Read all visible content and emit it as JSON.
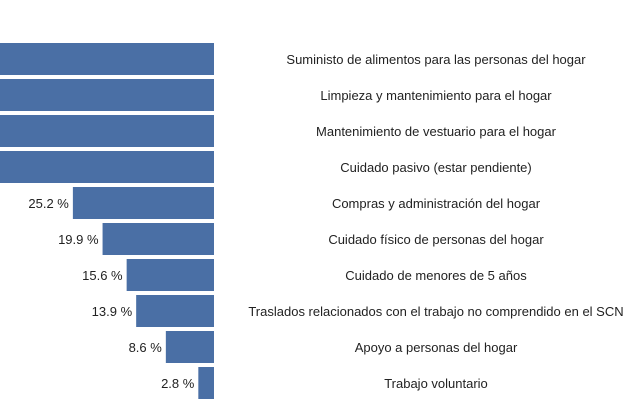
{
  "chart_data": {
    "type": "bar",
    "orientation": "horizontal",
    "direction": "right-to-left",
    "color": "#4a6fa5",
    "unit_suffix": " %",
    "categories": [
      "Suministo de alimentos para las personas del hogar",
      "Limpieza y mantenimiento para el hogar",
      "Mantenimiento de vestuario para el hogar",
      "Cuidado pasivo (estar pendiente)",
      "Compras y administración del hogar",
      "Cuidado físico de personas del hogar",
      "Cuidado de menores de 5 años",
      "Traslados relacionados con el trabajo no comprendido en el SCN",
      "Apoyo a personas del hogar",
      "Trabajo voluntario"
    ],
    "values": [
      null,
      null,
      null,
      null,
      25.2,
      19.9,
      15.6,
      13.9,
      8.6,
      2.8
    ],
    "value_labels": [
      "",
      "",
      "%",
      "%",
      "25.2 %",
      "19.9 %",
      "15.6 %",
      "13.9 %",
      "8.6 %",
      "2.8 %"
    ],
    "bar_extents": [
      46.1,
      46.1,
      43.7,
      43.3,
      25.2,
      19.9,
      15.6,
      13.9,
      8.6,
      2.8
    ],
    "grid": false,
    "legend": "none"
  }
}
